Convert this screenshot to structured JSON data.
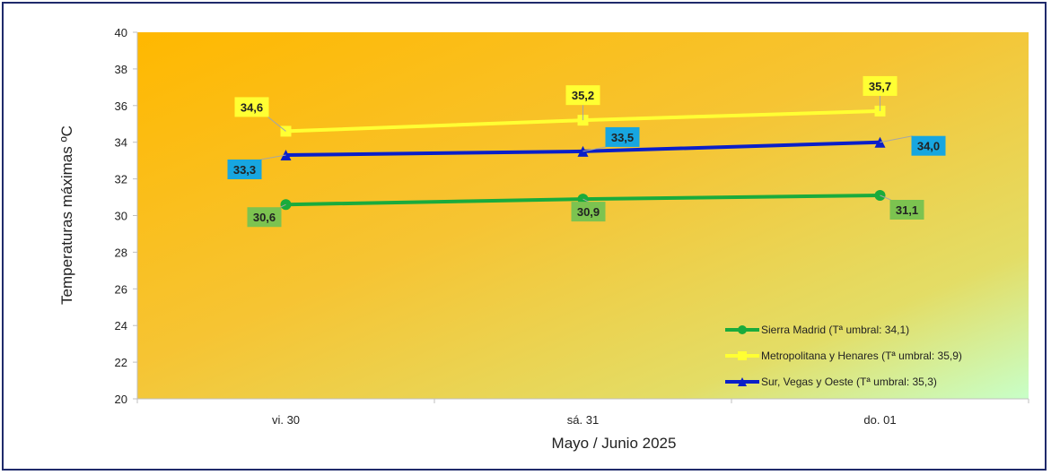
{
  "chart_data": {
    "type": "line",
    "categories": [
      "vi. 30",
      "sá. 31",
      "do. 01"
    ],
    "series": [
      {
        "name": "Sierra Madrid (Tª umbral: 34,1)",
        "values": [
          30.6,
          30.9,
          31.1
        ],
        "labels": [
          "30,6",
          "30,9",
          "31,1"
        ],
        "color": "#1aab3c",
        "label_bg": "#7cc350",
        "marker": "circle"
      },
      {
        "name": "Metropolitana y Henares (Tª umbral: 35,9)",
        "values": [
          34.6,
          35.2,
          35.7
        ],
        "labels": [
          "34,6",
          "35,2",
          "35,7"
        ],
        "color": "#ffff33",
        "label_bg": "#ffff33",
        "marker": "square"
      },
      {
        "name": "Sur, Vegas y Oeste (Tª umbral: 35,3)",
        "values": [
          33.3,
          33.5,
          34.0
        ],
        "labels": [
          "33,3",
          "33,5",
          "34,0"
        ],
        "color": "#0a1fc8",
        "label_bg": "#17a6e0",
        "marker": "triangle"
      }
    ],
    "xlabel": "Mayo / Junio 2025",
    "ylabel": "Temperaturas máximas ºC",
    "ylim": [
      20,
      40
    ],
    "yticks": [
      "20",
      "22",
      "24",
      "26",
      "28",
      "30",
      "32",
      "34",
      "36",
      "38",
      "40"
    ],
    "grid": false,
    "legend": "bottom-right",
    "background": {
      "from": "#ffb800",
      "to": "#c8ffc8"
    }
  }
}
